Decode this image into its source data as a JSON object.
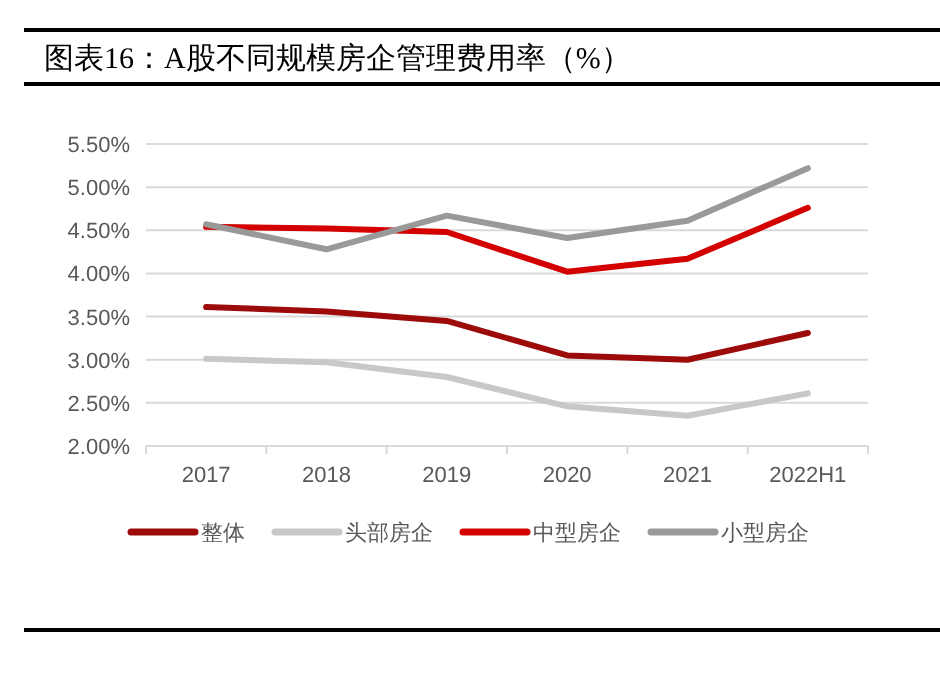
{
  "chart_data": {
    "type": "line",
    "title": "图表16：A股不同规模房企管理费用率（%）",
    "categories": [
      "2017",
      "2018",
      "2019",
      "2020",
      "2021",
      "2022H1"
    ],
    "series": [
      {
        "name": "整体",
        "color": "#9c0a0a",
        "values": [
          3.61,
          3.56,
          3.45,
          3.05,
          3.0,
          3.31
        ]
      },
      {
        "name": "头部房企",
        "color": "#c8c8c8",
        "values": [
          3.01,
          2.97,
          2.8,
          2.46,
          2.35,
          2.61
        ]
      },
      {
        "name": "中型房企",
        "color": "#d40000",
        "values": [
          4.54,
          4.52,
          4.48,
          4.02,
          4.17,
          4.76
        ]
      },
      {
        "name": "小型房企",
        "color": "#999999",
        "values": [
          4.57,
          4.28,
          4.67,
          4.41,
          4.61,
          5.22
        ]
      }
    ],
    "ylim": [
      2.0,
      5.5
    ],
    "yticks": [
      {
        "value": 2.0,
        "label": "2.00%"
      },
      {
        "value": 2.5,
        "label": "2.50%"
      },
      {
        "value": 3.0,
        "label": "3.00%"
      },
      {
        "value": 3.5,
        "label": "3.50%"
      },
      {
        "value": 4.0,
        "label": "4.00%"
      },
      {
        "value": 4.5,
        "label": "4.50%"
      },
      {
        "value": 5.0,
        "label": "5.00%"
      },
      {
        "value": 5.5,
        "label": "5.50%"
      }
    ],
    "grid": "y",
    "legend": "bottom",
    "marker": "none",
    "line_style": "solid"
  }
}
